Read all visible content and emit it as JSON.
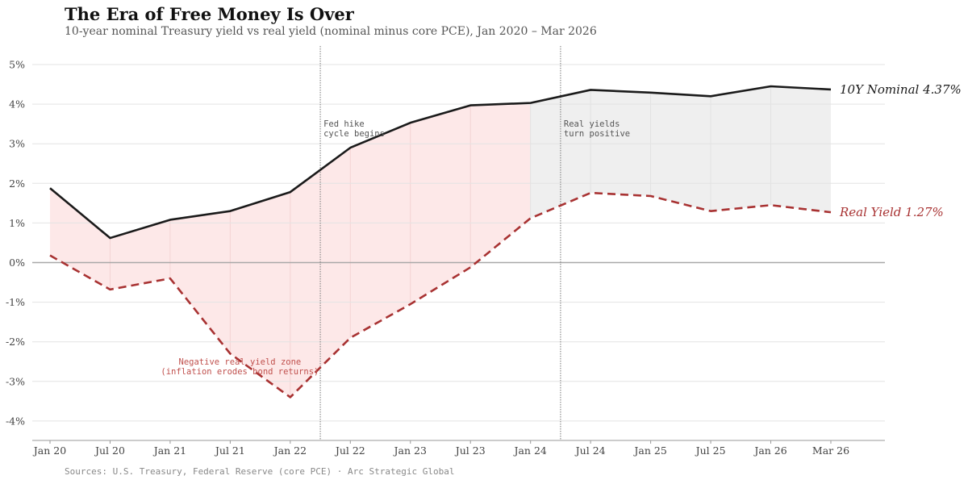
{
  "header": {
    "title": "The Era of Free Money Is Over",
    "subtitle": "10-year nominal Treasury yield vs real yield (nominal minus core PCE), Jan 2020 – Mar 2026"
  },
  "footer": {
    "source": "Sources: U.S. Treasury, Federal Reserve (core PCE) · Arc Strategic Global"
  },
  "colors": {
    "nominal": "#1a1a1a",
    "real": "#a83232",
    "negative_fill": "#fde8e8",
    "positive_fill": "#efefef"
  },
  "chart_data": {
    "type": "line",
    "title": "The Era of Free Money Is Over",
    "xlabel": "",
    "ylabel": "",
    "categories": [
      "Jan 20",
      "Jul 20",
      "Jan 21",
      "Jul 21",
      "Jan 22",
      "Jul 22",
      "Jan 23",
      "Jul 23",
      "Jan 24",
      "Jul 24",
      "Jan 25",
      "Jul 25",
      "Jan 26",
      "Mar 26"
    ],
    "ylim": [
      -4.5,
      5.5
    ],
    "yticks": [
      -4,
      -3,
      -2,
      -1,
      0,
      1,
      2,
      3,
      4,
      5
    ],
    "ytick_labels": [
      "-4%",
      "-3%",
      "-2%",
      "-1%",
      "0%",
      "1%",
      "2%",
      "3%",
      "4%",
      "5%"
    ],
    "series": [
      {
        "name": "10Y Nominal",
        "style": "solid",
        "values": [
          1.88,
          0.62,
          1.08,
          1.3,
          1.78,
          2.9,
          3.53,
          3.97,
          4.03,
          4.36,
          4.29,
          4.2,
          4.45,
          4.37
        ],
        "end_label": "10Y Nominal  4.37%"
      },
      {
        "name": "Real Yield",
        "style": "dashed",
        "values": [
          0.18,
          -0.68,
          -0.4,
          -2.3,
          -3.4,
          -1.9,
          -1.05,
          -0.12,
          1.12,
          1.76,
          1.68,
          1.3,
          1.45,
          1.27
        ],
        "end_label": "Real Yield  1.27%"
      }
    ],
    "vlines": [
      {
        "at_index": 4.5,
        "label_lines": [
          "Fed hike",
          "cycle begins"
        ]
      },
      {
        "at_index": 8.5,
        "label_lines": [
          "Real yields",
          "turn positive"
        ]
      }
    ],
    "annotations": [
      {
        "label_lines": [
          "Negative real yield zone",
          "(inflation erodes bond returns)"
        ]
      }
    ],
    "grid": true
  }
}
